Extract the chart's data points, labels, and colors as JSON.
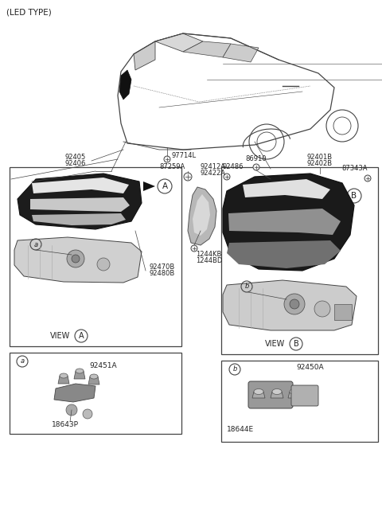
{
  "bg_color": "#ffffff",
  "fig_width": 4.8,
  "fig_height": 6.57,
  "dpi": 100,
  "lc": "#444444",
  "tc": "#222222",
  "labels": {
    "led_type": "(LED TYPE)",
    "97714L": "97714L",
    "92405": "92405",
    "92406": "92406",
    "87259A": "87259A",
    "92412A": "92412A",
    "92422A": "92422A",
    "92486": "92486",
    "86910": "86910",
    "92401B": "92401B",
    "92402B": "92402B",
    "87343A": "87343A",
    "92470B": "92470B",
    "92480B": "92480B",
    "1244KB": "1244KB",
    "1244BD": "1244BD",
    "92451A": "92451A",
    "18643P": "18643P",
    "92450A": "92450A",
    "18644E": "18644E"
  }
}
